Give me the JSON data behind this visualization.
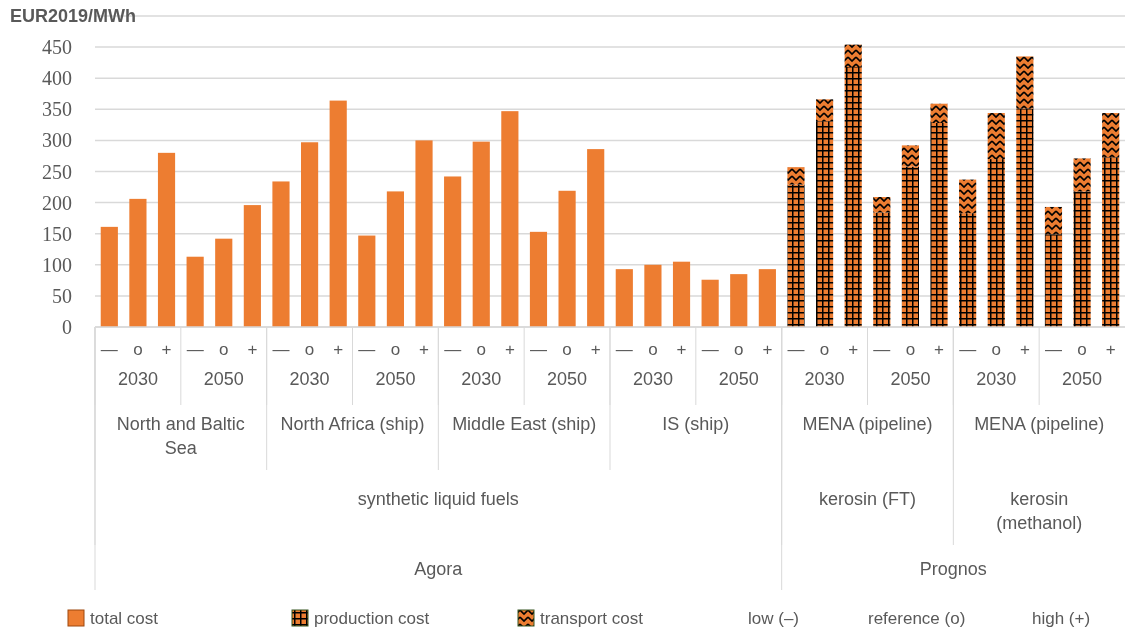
{
  "chart_data": {
    "type": "bar",
    "stacked": true,
    "ylabel": "EUR2019/MWh",
    "categories": [
      "—",
      "o",
      "+",
      "—",
      "o",
      "+",
      "—",
      "o",
      "+",
      "—",
      "o",
      "+",
      "—",
      "o",
      "+",
      "—",
      "o",
      "+",
      "—",
      "o",
      "+",
      "—",
      "o",
      "+",
      "—",
      "o",
      "+",
      "—",
      "o",
      "+",
      "—",
      "o",
      "+",
      "—",
      "o",
      "+"
    ],
    "series": [
      {
        "name": "total cost",
        "color": "#ed7d31",
        "values": [
          161,
          206,
          280,
          113,
          142,
          196,
          234,
          297,
          364,
          147,
          218,
          300,
          242,
          298,
          347,
          153,
          219,
          286,
          93,
          100,
          105,
          76,
          85,
          93,
          null,
          null,
          null,
          null,
          null,
          null,
          null,
          null,
          null,
          null,
          null,
          null
        ]
      },
      {
        "name": "production cost",
        "color": "#ed7d31",
        "values": [
          null,
          null,
          null,
          null,
          null,
          null,
          null,
          null,
          null,
          null,
          null,
          null,
          null,
          null,
          null,
          null,
          null,
          null,
          null,
          null,
          null,
          null,
          null,
          null,
          229,
          331,
          418,
          184,
          258,
          328,
          183,
          270,
          351,
          149,
          218,
          273
        ]
      },
      {
        "name": "transport cost",
        "color": "#ed7d31",
        "values": [
          null,
          null,
          null,
          null,
          null,
          null,
          null,
          null,
          null,
          null,
          null,
          null,
          null,
          null,
          null,
          null,
          null,
          null,
          null,
          null,
          null,
          null,
          null,
          null,
          28,
          35,
          36,
          25,
          34,
          31,
          54,
          74,
          84,
          44,
          53,
          71
        ]
      }
    ],
    "ylim": [
      0,
      500
    ],
    "yticks": [
      0,
      50,
      100,
      150,
      200,
      250,
      300,
      350,
      400,
      450,
      {
        "value": 500,
        "label": null
      }
    ],
    "grid": "y",
    "legend": "bottom",
    "annotations": [
      "2030",
      "2050",
      "2030",
      "2050",
      "2030",
      "2050",
      "2030",
      "2050",
      "2030",
      "2050",
      "2030",
      "2050",
      "North and Baltic\nSea",
      "North Africa (ship)",
      "Middle East (ship)",
      "IS (ship)",
      "MENA (pipeline)",
      "MENA (pipeline)",
      "synthetic liquid fuels",
      "kerosin (FT)",
      "kerosin\n(methanol)",
      "Agora",
      "Prognos",
      "low (–)",
      "reference (o)",
      "high (+)"
    ]
  }
}
